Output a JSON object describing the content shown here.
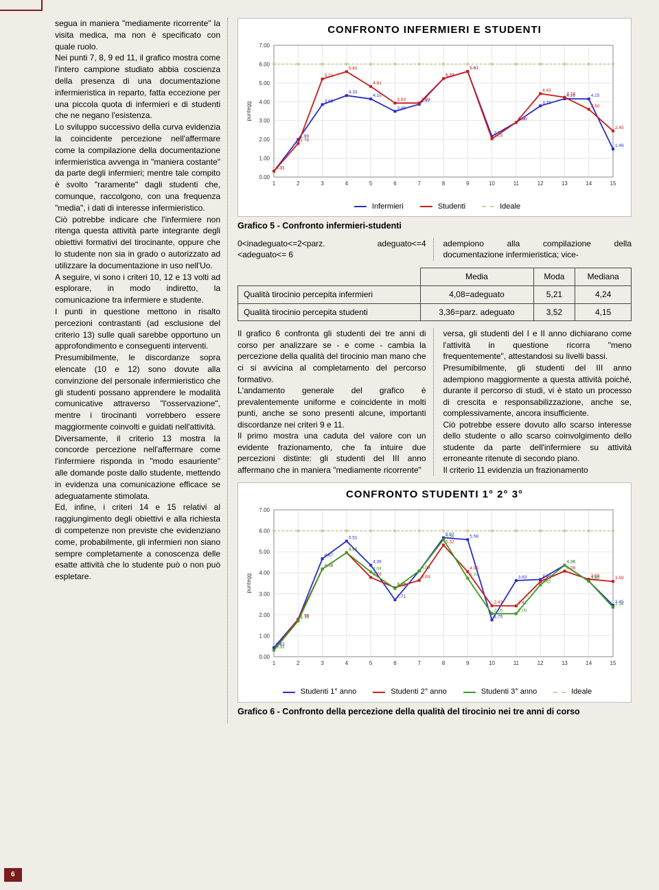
{
  "pagenum": "6",
  "left_col_text": "segua in maniera \"mediamente ricorrente\" la visita medica, ma non è specificato con quale ruolo.\nNei punti 7, 8, 9 ed 11, il grafico mostra come l'intero campione studiato abbia coscienza della presenza di una documentazione infermieristica in reparto, fatta eccezione per una piccola quota di infermieri e di studenti che ne negano l'esistenza.\nLo sviluppo successivo della curva evidenzia la coincidente percezione nell'affermare come la compilazione della documentazione infermieristica avvenga in \"maniera costante\" da parte degli infermieri; mentre tale compito è svolto \"raramente\" dagli studenti che, comunque, raccolgono, con una frequenza \"media\", i dati di interesse infermieristico.\nCiò potrebbe indicare che l'infermiere non ritenga questa attività parte integrante degli obiettivi formativi del tirocinante, oppure che lo studente non sia in grado o autorizzato ad utilizzare la documentazione in uso nell'Uo.\nA seguire, vi sono i criteri 10, 12 e 13 volti ad esplorare, in modo indiretto, la comunicazione tra infermiere e studente.\nI punti in questione mettono in risalto percezioni contrastanti (ad esclusione del criterio 13) sulle quali sarebbe opportuno un approfondimento e conseguenti interventi.\nPresumibilmente, le discordanze sopra elencate (10 e 12) sono dovute alla convinzione del personale infermieristico che gli studenti possano apprendere le modalità comunicative attraverso \"l'osservazione\", mentre i tirocinanti vorrebbero essere maggiormente coinvolti e guidati nell'attività.\nDiversamente, il criterio 13 mostra la concorde percezione nell'affermare come l'infermiere risponda in \"modo esauriente\" alle domande poste dallo studente, mettendo in evidenza una comunicazione efficace se adeguatamente stimolata.\nEd, infine, i criteri 14 e 15 relativi al raggiungimento degli obiettivi e alla richiesta di competenze non previste che evidenziano come, probabilmente, gli infermieri non siano sempre completamente a conoscenza delle esatte attività che lo studente può o non può espletare.",
  "chart5": {
    "title": "CONFRONTO INFERMIERI E STUDENTI",
    "caption": "Grafico 5 - Confronto infermieri-studenti",
    "ylabel": "puntegg",
    "ylim": [
      0.0,
      7.0
    ],
    "ytick_step": 1.0,
    "xvals": [
      1,
      2,
      3,
      4,
      5,
      6,
      7,
      8,
      9,
      10,
      11,
      12,
      13,
      14,
      15
    ],
    "series": {
      "Infermieri": {
        "color": "#2a2ec5",
        "values": [
          0.31,
          1.99,
          3.85,
          4.33,
          4.15,
          3.49,
          3.87,
          5.23,
          5.61,
          2.17,
          2.9,
          3.78,
          4.16,
          4.15,
          1.49
        ]
      },
      "Studenti": {
        "color": "#cc1b1b",
        "values": [
          0.31,
          1.78,
          5.21,
          5.6,
          4.81,
          3.93,
          3.93,
          5.23,
          5.61,
          2.03,
          2.9,
          4.43,
          4.24,
          3.6,
          2.45
        ]
      },
      "Ideale": {
        "color": "#cfcfa0",
        "dash": true,
        "values": [
          6,
          6,
          6,
          6,
          6,
          6,
          6,
          6,
          6,
          6,
          6,
          6,
          6,
          6,
          6
        ]
      }
    },
    "plot": {
      "xl": 46,
      "xr": 540,
      "yt": 8,
      "yb": 200
    },
    "bg": "#ffffff",
    "grid_color": "#e6e6e6",
    "label_fontsize": 8
  },
  "legend_note_l": "0<inadeguato<=2<parz. adeguato<=4 <adeguato<= 6",
  "legend_note_r": "adempiono alla compilazione della documentazione infermieristica; vice-",
  "table": {
    "headers": [
      "",
      "Media",
      "Moda",
      "Mediana"
    ],
    "rows": [
      [
        "Qualità tirocinio percepita infermieri",
        "4,08=adeguato",
        "5,21",
        "4,24"
      ],
      [
        "Qualità tirocinio percepita studenti",
        "3,36=parz. adeguato",
        "3,52",
        "4,15"
      ]
    ]
  },
  "body_left": "Il grafico 6 confronta gli studenti dei tre anni di corso per analizzare se - e come - cambia la percezione della qualità del tirocinio man mano che ci si avvicina al completamento del percorso formativo.\nL'andamento generale del grafico è prevalentemente uniforme e coincidente in molti punti, anche se sono presenti alcune, importanti discordanze nei criteri 9 e 11.\nIl primo mostra una caduta del valore con un evidente frazionamento, che fa intuire due percezioni distinte: gli studenti del III anno affermano che in maniera \"mediamente ricorrente\"",
  "body_right": "versa, gli studenti del I e II anno dichiarano come l'attività in questione ricorra \"meno frequentemente\", attestandosi su livelli bassi.\nPresumibilmente, gli studenti del III anno adempiono maggiormente a questa attività poiché, durante il percorso di studi, vi è stato un processo di crescita e responsabilizzazione, anche se, complessivamente, ancora insufficiente.\nCiò potrebbe essere dovuto allo scarso interesse dello studente o allo scarso coinvolgimento dello studente da parte dell'infermiere su attività erroneante ritenute di secondo piano.\nIl criterio 11 evidenzia un frazionamento",
  "chart6": {
    "title": "CONFRONTO STUDENTI 1° 2° 3°",
    "caption": "Grafico 6 - Confronto della percezione della qualità del tirocinio nei tre anni di corso",
    "ylabel": "puntegg",
    "ylim": [
      0.0,
      7.0
    ],
    "ytick_step": 1.0,
    "xvals": [
      1,
      2,
      3,
      4,
      5,
      6,
      7,
      8,
      9,
      10,
      11,
      12,
      13,
      14,
      15
    ],
    "series": {
      "Studenti 1° anno": {
        "color": "#2a2ec5",
        "values": [
          0.43,
          1.78,
          4.67,
          5.51,
          4.36,
          2.71,
          4.09,
          5.67,
          5.58,
          1.75,
          3.63,
          3.68,
          4.36,
          3.6,
          2.45
        ]
      },
      "Studenti 2° anno": {
        "color": "#cc1b1b",
        "values": [
          0.31,
          1.78,
          4.18,
          4.96,
          3.78,
          3.29,
          3.64,
          5.32,
          4.05,
          2.43,
          2.42,
          3.58,
          4.08,
          3.69,
          3.59
        ]
      },
      "Studenti 3° anno": {
        "color": "#3c9a22",
        "values": [
          0.31,
          1.7,
          4.18,
          4.96,
          4.04,
          3.25,
          4.09,
          5.58,
          3.74,
          2.05,
          2.05,
          3.42,
          4.36,
          3.6,
          2.36
        ]
      },
      "Ideale": {
        "color": "#cfcfa0",
        "dash": true,
        "values": [
          6,
          6,
          6,
          6,
          6,
          6,
          6,
          6,
          6,
          6,
          6,
          6,
          6,
          6,
          6
        ]
      }
    },
    "plot": {
      "xl": 46,
      "xr": 540,
      "yt": 8,
      "yb": 222
    },
    "bg": "#ffffff",
    "grid_color": "#e6e6e6",
    "label_fontsize": 8
  }
}
